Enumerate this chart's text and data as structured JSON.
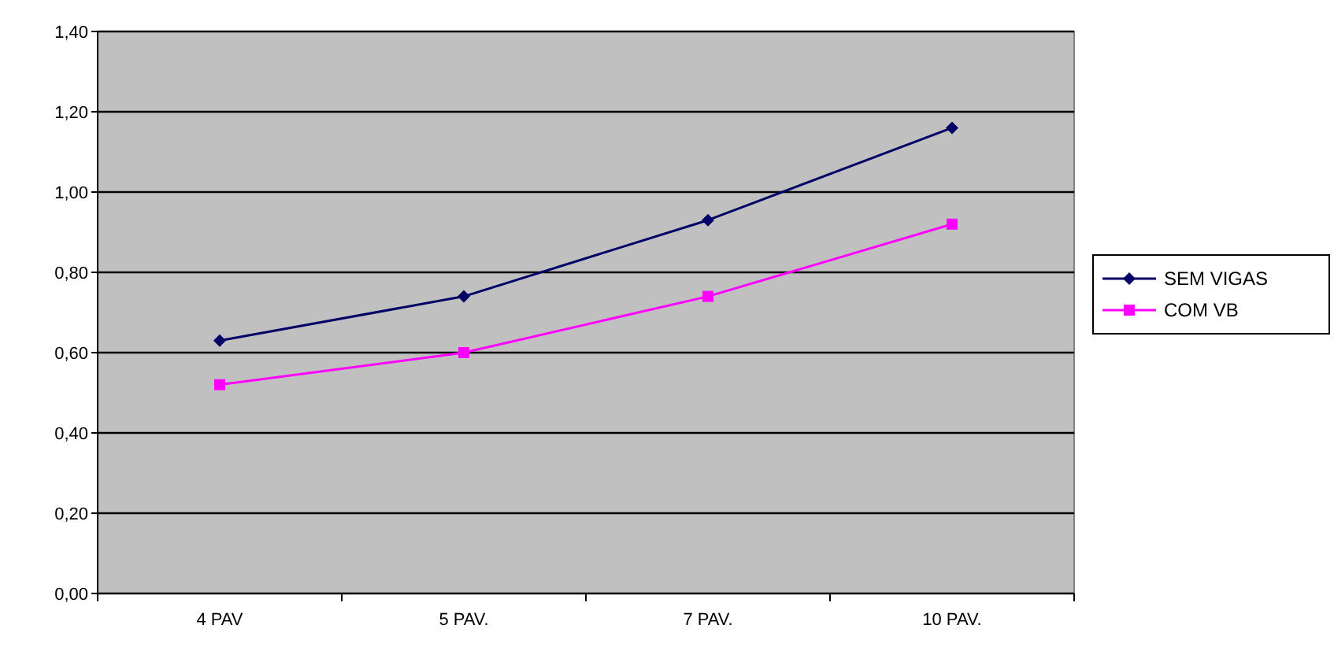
{
  "chart_data": {
    "type": "line",
    "categories": [
      "4 PAV",
      "5 PAV.",
      "7 PAV.",
      "10 PAV."
    ],
    "series": [
      {
        "name": "SEM VIGAS",
        "color": "#000066",
        "values": [
          0.63,
          0.74,
          0.93,
          1.16
        ],
        "marker": "diamond"
      },
      {
        "name": "COM VB",
        "color": "#ff00ff",
        "values": [
          0.52,
          0.6,
          0.74,
          0.92
        ],
        "marker": "square"
      }
    ],
    "ylim": [
      0,
      1.4
    ],
    "yticks": [
      {
        "value": 0,
        "label": "0,00"
      },
      {
        "value": 0.2,
        "label": "0,20"
      },
      {
        "value": 0.4,
        "label": "0,40"
      },
      {
        "value": 0.6,
        "label": "0,60"
      },
      {
        "value": 0.8,
        "label": "0,80"
      },
      {
        "value": 1,
        "label": "1,00"
      },
      {
        "value": 1.2,
        "label": "1,20"
      },
      {
        "value": 1.4,
        "label": "1,40"
      }
    ],
    "grid": "y",
    "legend": "right"
  }
}
